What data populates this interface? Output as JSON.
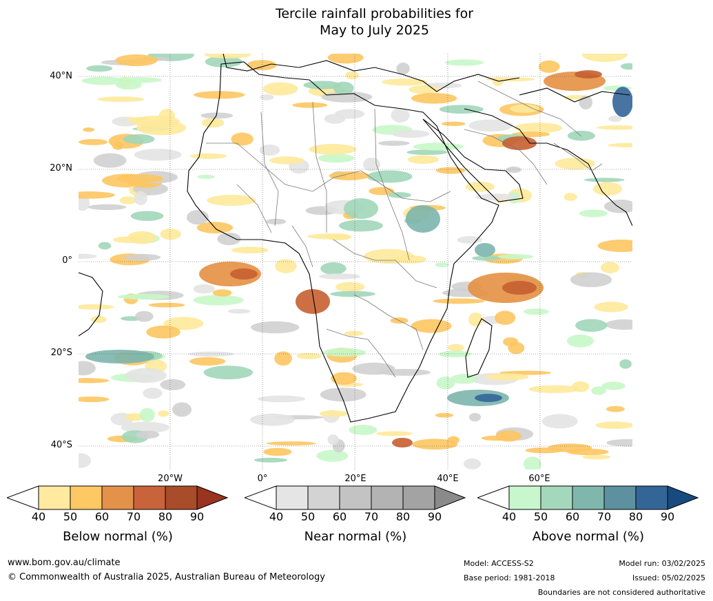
{
  "title_line1": "Tercile rainfall probabilities for",
  "title_line2": "May to July 2025",
  "map": {
    "lat_labels": [
      "40°N",
      "20°N",
      "0°",
      "20°S",
      "40°S"
    ],
    "lon_labels": [
      "20°W",
      "0°",
      "20°E",
      "40°E",
      "60°E"
    ],
    "colors": {
      "ocean_neutral": "#ffffff",
      "below": [
        "#fee99a",
        "#fdc560",
        "#e49041",
        "#c65f31",
        "#a3441f",
        "#7e2a10"
      ],
      "near": [
        "#e3e3e3",
        "#d0d0d0",
        "#bdbdbd",
        "#a9a9a9",
        "#909090",
        "#777777"
      ],
      "above": [
        "#c8f7c8",
        "#a1d6b9",
        "#7cb5ac",
        "#5a91a0",
        "#336597",
        "#164681"
      ]
    }
  },
  "legends": [
    {
      "caption": "Below normal (%)",
      "ticks": [
        "40",
        "50",
        "60",
        "70",
        "80",
        "90"
      ],
      "colors": [
        "#ffeaa0",
        "#fec962",
        "#e4914a",
        "#c9633a",
        "#a84c2a",
        "#9a3320"
      ]
    },
    {
      "caption": "Near normal (%)",
      "ticks": [
        "40",
        "50",
        "60",
        "70",
        "80",
        "90"
      ],
      "colors": [
        "#e5e5e5",
        "#d3d3d3",
        "#c3c3c3",
        "#b3b3b3",
        "#a3a3a3",
        "#8a8a8a"
      ]
    },
    {
      "caption": "Above normal (%)",
      "ticks": [
        "40",
        "50",
        "60",
        "70",
        "80",
        "90"
      ],
      "colors": [
        "#c9f7cd",
        "#a4d8bd",
        "#80b7ad",
        "#5d919f",
        "#346597",
        "#174b80"
      ]
    }
  ],
  "footer": {
    "url": "www.bom.gov.au/climate",
    "copyright": "© Commonwealth of Australia 2025, Australian Bureau of Meteorology",
    "model": "Model: ACCESS-S2",
    "base_period": "Base period: 1981-2018",
    "model_run": "Model run: 03/02/2025",
    "issued": "Issued: 05/02/2025",
    "disclaimer": "Boundaries are not considered authoritative"
  }
}
